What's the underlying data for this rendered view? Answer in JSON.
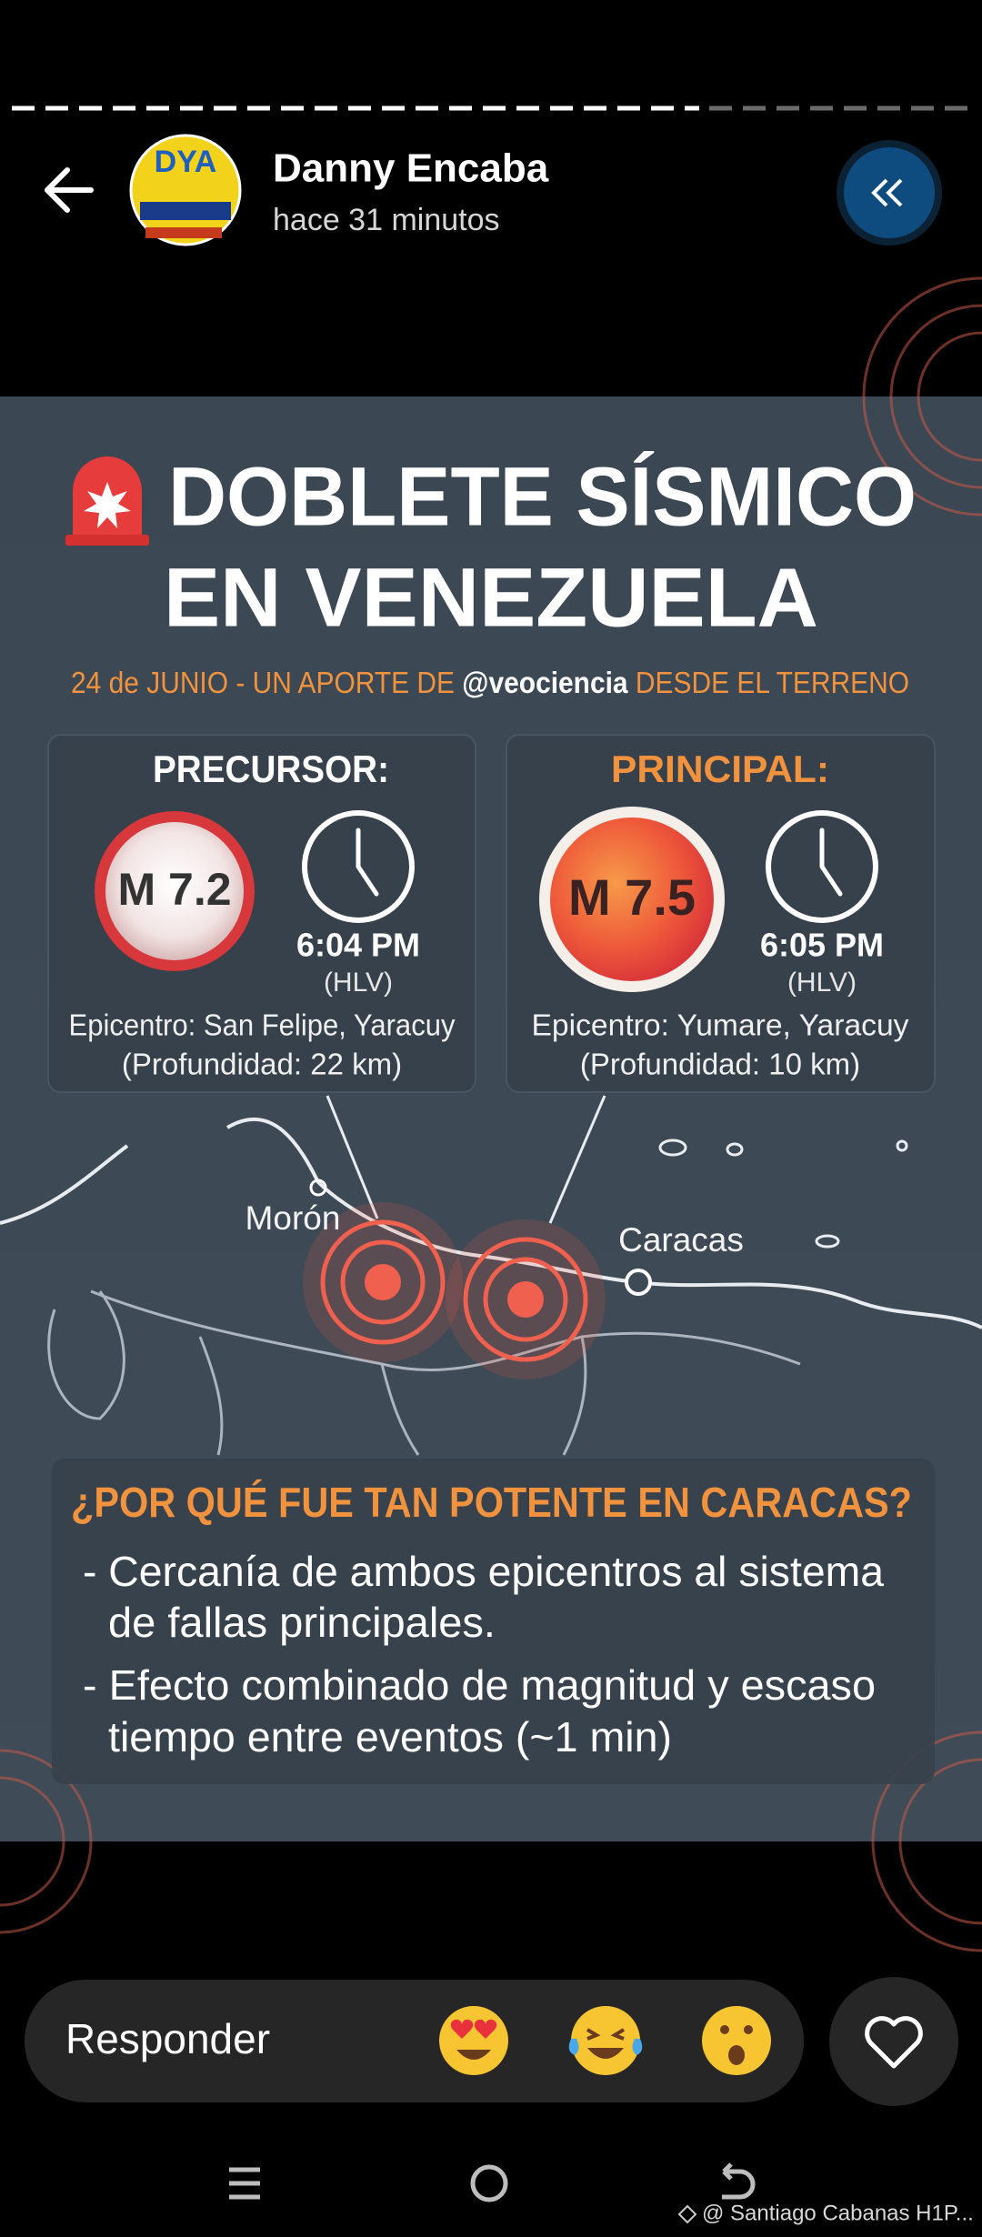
{
  "header": {
    "name": "Danny Encaba",
    "time": "hace 31 minutos"
  },
  "infographic": {
    "title": [
      "DOBLETE SÍSMICO",
      "EN VENEZUELA"
    ],
    "subtitle": [
      "24 de JUNIO - UN APORTE DE ",
      "@veociencia",
      " DESDE EL TERRENO"
    ],
    "panels": [
      {
        "heading": "PRECURSOR:",
        "magnitude": "M 7.2",
        "time": "6:04 PM",
        "zone": "(HLV)",
        "epicenter": "Epicentro: San Felipe, Yaracuy",
        "depth": "(Profundidad: 22 km)"
      },
      {
        "heading": "PRINCIPAL:",
        "magnitude": "M 7.5",
        "time": "6:05 PM",
        "zone": "(HLV)",
        "epicenter": "Epicentro: Yumare, Yaracuy",
        "depth": "(Profundidad: 10 km)"
      }
    ],
    "map": {
      "labels": [
        "Morón",
        "Caracas"
      ]
    },
    "explanation": {
      "heading": "¿POR QUÉ FUE TAN POTENTE EN CARACAS?",
      "bullets": [
        [
          "- Cercanía de ambos epicentros al sistema",
          "de fallas principales."
        ],
        [
          "- Efecto combinado de magnitud y escaso",
          "tiempo entre eventos (~1 min)"
        ]
      ]
    }
  },
  "reply": {
    "placeholder": "Responder"
  },
  "footer": {
    "credit": "@ Santiago Cabanas H1P..."
  }
}
